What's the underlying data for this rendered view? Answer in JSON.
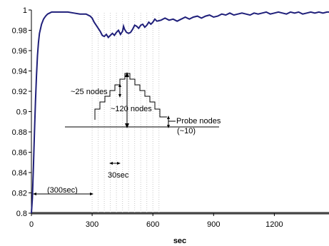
{
  "chart_data": {
    "type": "line",
    "title": "",
    "xlabel": "sec",
    "ylabel": "",
    "xlim": [
      0,
      1470
    ],
    "ylim": [
      0.8,
      1.0
    ],
    "x_ticks": [
      0,
      300,
      600,
      900,
      1200
    ],
    "x_tick_labels": [
      "0",
      "300",
      "600",
      "900",
      "1200"
    ],
    "y_ticks": [
      0.8,
      0.82,
      0.84,
      0.86,
      0.88,
      0.9,
      0.92,
      0.94,
      0.96,
      0.98,
      1.0
    ],
    "y_tick_labels": [
      "0.8",
      "0.82",
      "0.84",
      "0.86",
      "0.88",
      "0.9",
      "0.92",
      "0.94",
      "0.96",
      "0.98",
      "1"
    ],
    "grid": false,
    "line_color": "#1f1f7a",
    "series": [
      {
        "x": [
          0,
          5,
          10,
          15,
          20,
          25,
          30,
          35,
          40,
          50,
          60,
          70,
          80,
          90,
          100,
          120,
          150,
          180,
          210,
          240,
          270,
          290,
          300,
          310,
          320,
          330,
          340,
          350,
          360,
          370,
          380,
          390,
          400,
          410,
          420,
          430,
          440,
          450,
          455,
          460,
          470,
          480,
          490,
          500,
          510,
          520,
          530,
          540,
          550,
          560,
          570,
          580,
          590,
          600,
          610,
          620,
          640,
          660,
          680,
          700,
          720,
          740,
          760,
          780,
          800,
          820,
          840,
          860,
          880,
          900,
          920,
          940,
          960,
          980,
          1000,
          1020,
          1040,
          1060,
          1080,
          1100,
          1120,
          1140,
          1160,
          1180,
          1200,
          1220,
          1240,
          1260,
          1280,
          1300,
          1320,
          1340,
          1360,
          1380,
          1400,
          1420,
          1440,
          1460,
          1470
        ],
        "values": [
          0.8,
          0.815,
          0.845,
          0.88,
          0.91,
          0.935,
          0.955,
          0.968,
          0.977,
          0.986,
          0.991,
          0.994,
          0.996,
          0.997,
          0.998,
          0.998,
          0.998,
          0.998,
          0.997,
          0.996,
          0.996,
          0.994,
          0.992,
          0.988,
          0.985,
          0.982,
          0.979,
          0.975,
          0.974,
          0.976,
          0.973,
          0.975,
          0.977,
          0.975,
          0.978,
          0.98,
          0.976,
          0.979,
          0.984,
          0.981,
          0.978,
          0.977,
          0.978,
          0.981,
          0.985,
          0.984,
          0.982,
          0.985,
          0.986,
          0.983,
          0.985,
          0.988,
          0.986,
          0.988,
          0.991,
          0.989,
          0.99,
          0.992,
          0.99,
          0.991,
          0.989,
          0.991,
          0.993,
          0.991,
          0.993,
          0.994,
          0.992,
          0.994,
          0.995,
          0.993,
          0.994,
          0.996,
          0.995,
          0.997,
          0.995,
          0.996,
          0.997,
          0.996,
          0.995,
          0.997,
          0.996,
          0.997,
          0.998,
          0.996,
          0.997,
          0.998,
          0.997,
          0.996,
          0.998,
          0.997,
          0.998,
          0.996,
          0.997,
          0.998,
          0.997,
          0.998,
          0.997,
          0.998,
          0.998
        ]
      }
    ],
    "annotations": {
      "label_300": "(300sec)",
      "label_30": "30sec",
      "label_25": "~25 nodes",
      "label_120": "~120 nodes",
      "label_probe": "Probe nodes",
      "label_10": "(~10)"
    }
  }
}
